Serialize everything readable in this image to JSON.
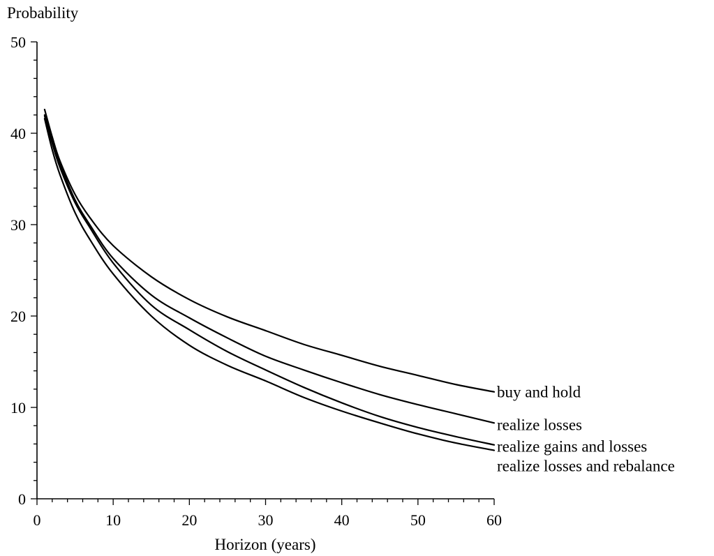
{
  "chart_data": {
    "type": "line",
    "ylabel": "Probability",
    "xlabel": "Horizon (years)",
    "xlim": [
      0,
      60
    ],
    "ylim": [
      0,
      50
    ],
    "x_ticks": [
      0,
      10,
      20,
      30,
      40,
      50,
      60
    ],
    "y_ticks": [
      0,
      10,
      20,
      30,
      40,
      50
    ],
    "x_tick_labels": [
      "0",
      "10",
      "20",
      "30",
      "40",
      "50",
      "60"
    ],
    "y_tick_labels": [
      "0",
      "10",
      "20",
      "30",
      "40",
      "50"
    ],
    "minor_ticks": true,
    "grid": false,
    "legend": "end-of-line labels",
    "x": [
      1,
      2,
      3,
      5,
      7,
      10,
      15,
      20,
      25,
      30,
      35,
      40,
      45,
      50,
      55,
      60
    ],
    "series": [
      {
        "name": "buy and hold",
        "values": [
          42.6,
          39.6,
          37.0,
          33.3,
          30.7,
          27.7,
          24.3,
          21.8,
          19.9,
          18.4,
          16.9,
          15.7,
          14.5,
          13.5,
          12.5,
          11.7
        ]
      },
      {
        "name": "realize losses",
        "values": [
          42.0,
          39.2,
          36.7,
          32.7,
          29.9,
          26.3,
          22.3,
          19.8,
          17.6,
          15.6,
          14.1,
          12.7,
          11.4,
          10.3,
          9.3,
          8.3
        ]
      },
      {
        "name": "realize gains and losses",
        "values": [
          41.9,
          38.9,
          36.3,
          32.4,
          29.6,
          25.8,
          21.2,
          18.5,
          16.1,
          14.1,
          12.2,
          10.5,
          9.0,
          7.8,
          6.8,
          5.9
        ]
      },
      {
        "name": "realize losses and rebalance",
        "values": [
          41.6,
          38.2,
          35.5,
          31.3,
          28.3,
          24.6,
          20.0,
          16.8,
          14.6,
          12.9,
          11.1,
          9.6,
          8.3,
          7.1,
          6.1,
          5.3
        ]
      }
    ]
  }
}
